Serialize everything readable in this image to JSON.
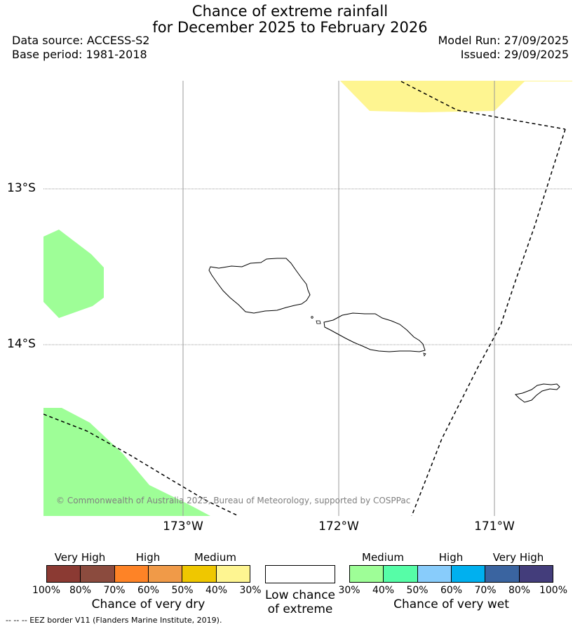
{
  "title": {
    "line1": "Chance of extreme rainfall",
    "line2": "for December 2025 to February 2026"
  },
  "meta": {
    "data_source": "Data source: ACCESS-S2",
    "base_period": "Base period: 1981-2018",
    "model_run": "Model Run: 27/09/2025",
    "issued": "Issued: 29/09/2025"
  },
  "map": {
    "lat_labels": [
      "13°S",
      "14°S"
    ],
    "lon_labels": [
      "173°W",
      "172°W",
      "171°W"
    ],
    "credit": "© Commonwealth of Australia 2025, Bureau of Meteorology, supported by COSPPac",
    "colors": {
      "light_yellow": "#fef591",
      "light_green": "#9efe97",
      "grid": "#999999"
    }
  },
  "legend_dry": {
    "headers": [
      "Very High",
      "High",
      "Medium"
    ],
    "colors": [
      "#8b3a33",
      "#8b4b3e",
      "#fe8326",
      "#f09a48",
      "#efc700",
      "#fef591"
    ],
    "ticks": [
      "100%",
      "80%",
      "70%",
      "60%",
      "50%",
      "40%",
      "30%"
    ],
    "title": "Chance of very dry"
  },
  "legend_low": {
    "line1": "Low chance",
    "line2": "of extreme"
  },
  "legend_wet": {
    "headers": [
      "Medium",
      "High",
      "Very High"
    ],
    "colors": [
      "#9efe97",
      "#56fda7",
      "#88ccfb",
      "#00b0ef",
      "#3a64a0",
      "#433d7b"
    ],
    "ticks": [
      "30%",
      "40%",
      "50%",
      "60%",
      "70%",
      "80%",
      "100%"
    ],
    "title": "Chance of very wet"
  },
  "footer": "-- -- -- EEZ border V11 (Flanders Marine Institute, 2019)."
}
